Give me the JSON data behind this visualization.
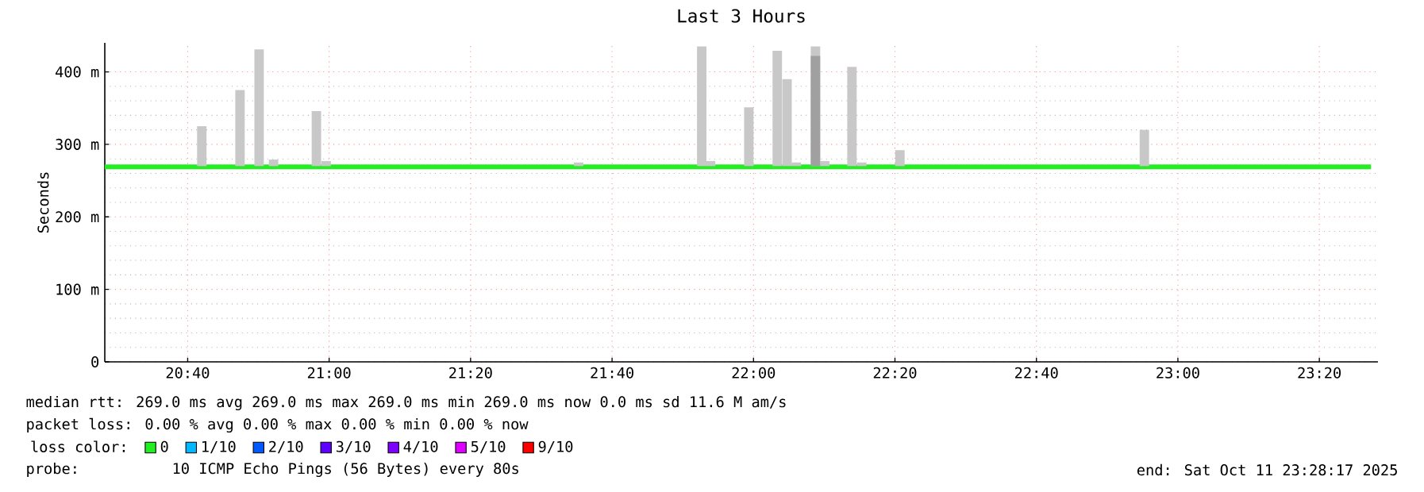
{
  "chart_data": {
    "type": "bar",
    "title": "Last 3 Hours",
    "ylabel": "Seconds",
    "xlim": [
      20.4714,
      23.4714
    ],
    "ylim": [
      0,
      440
    ],
    "xticks": [
      {
        "value": 20.6667,
        "label": "20:40"
      },
      {
        "value": 21.0,
        "label": "21:00"
      },
      {
        "value": 21.3333,
        "label": "21:20"
      },
      {
        "value": 21.6667,
        "label": "21:40"
      },
      {
        "value": 22.0,
        "label": "22:00"
      },
      {
        "value": 22.3333,
        "label": "22:20"
      },
      {
        "value": 22.6667,
        "label": "22:40"
      },
      {
        "value": 23.0,
        "label": "23:00"
      },
      {
        "value": 23.3333,
        "label": "23:20"
      }
    ],
    "yticks": [
      {
        "value": 0,
        "label": "0"
      },
      {
        "value": 100,
        "label": "100 m"
      },
      {
        "value": 200,
        "label": "200 m"
      },
      {
        "value": 300,
        "label": "300 m"
      },
      {
        "value": 400,
        "label": "400 m"
      }
    ],
    "grid": true,
    "legend": "bottom",
    "legend_title": "loss color:",
    "series": [
      {
        "color": "#c8c8c8",
        "x": [
          20.7,
          20.79,
          20.835,
          20.869,
          20.97,
          20.993,
          21.588,
          21.878,
          21.899,
          21.989,
          22.056,
          22.079,
          22.101,
          22.146,
          22.168,
          22.232,
          22.255,
          22.345,
          22.921
        ],
        "base": [
          270,
          270,
          270,
          270,
          270,
          270,
          270,
          270,
          270,
          270,
          270,
          270,
          270,
          270,
          270,
          270,
          270,
          270,
          270
        ],
        "values": [
          55,
          105,
          161,
          9,
          76,
          7,
          5,
          165,
          7,
          81,
          159,
          120,
          5,
          165,
          7,
          137,
          5,
          22,
          50
        ]
      },
      {
        "color": "#a0a0a0",
        "x": [
          22.146
        ],
        "base": [
          270
        ],
        "values": [
          152
        ]
      },
      {
        "type": "line",
        "name": "0",
        "color": "#22ee22",
        "x": [
          20.4714,
          23.455
        ],
        "values": [
          269,
          269
        ]
      },
      {
        "type": "line",
        "name": "1/10",
        "color": "#00b8ff"
      },
      {
        "type": "line",
        "name": "2/10",
        "color": "#0059ff"
      },
      {
        "type": "line",
        "name": "3/10",
        "color": "#5e00ff"
      },
      {
        "type": "line",
        "name": "4/10",
        "color": "#7e00ff"
      },
      {
        "type": "line",
        "name": "5/10",
        "color": "#dd00ff"
      },
      {
        "type": "line",
        "name": "9/10",
        "color": "#ff0000"
      }
    ],
    "annotations": [
      "median rtt:  269.0 ms avg  269.0 ms max  269.0 ms min  269.0 ms now  0.0 ms sd  11.6 M am/s",
      "packet loss: 0.00 % avg  0.00 % max  0.00 % min  0.00 % now",
      "probe:",
      "10 ICMP Echo Pings (56 Bytes) every 80s",
      "end: Sat Oct 11 23:28:17 2025"
    ]
  }
}
